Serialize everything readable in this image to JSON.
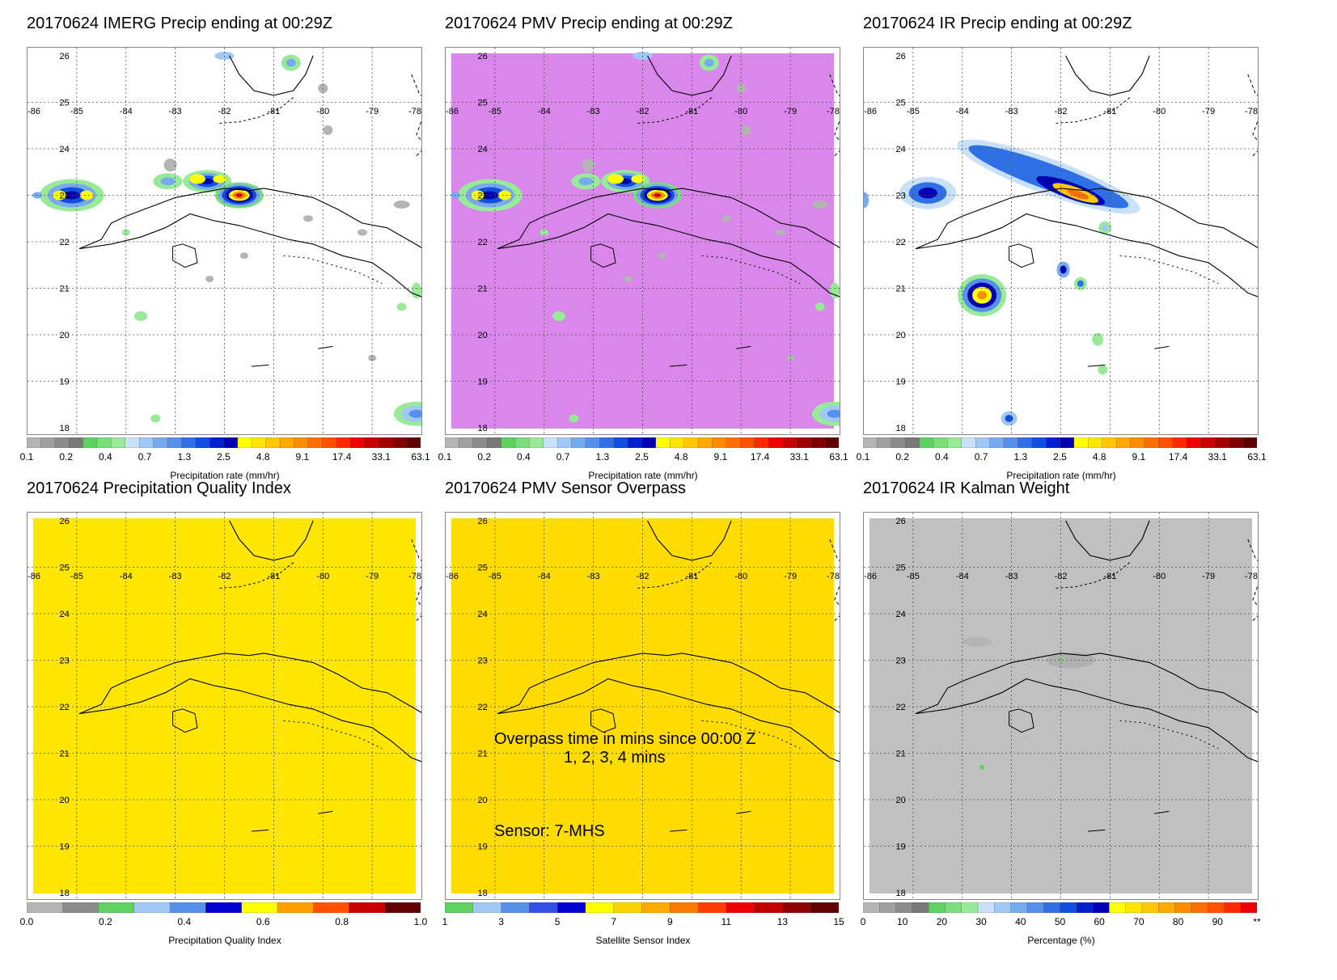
{
  "panels": [
    {
      "title": "20170624 IMERG Precip ending at 00:29Z",
      "background": "#ffffff",
      "precip_blobs": true,
      "colorbar": {
        "title": "Precipitation rate (mm/hr)",
        "ticks": [
          "0.1",
          "0.2",
          "0.4",
          "0.7",
          "1.3",
          "2.5",
          "4.8",
          "9.1",
          "17.4",
          "33.1",
          "63.1"
        ],
        "colors": [
          "#b4b4b4",
          "#a0a0a0",
          "#8c8c8c",
          "#787878",
          "#5fd15f",
          "#7adf7a",
          "#98ea98",
          "#c8e0f8",
          "#a0c8f5",
          "#78aaf0",
          "#5590eb",
          "#3070e6",
          "#1050e0",
          "#0020d0",
          "#0000b0",
          "#ffff00",
          "#ffe600",
          "#ffc800",
          "#ffaa00",
          "#ff8c00",
          "#ff6e00",
          "#ff5000",
          "#ff2800",
          "#ee0000",
          "#c80000",
          "#a00000",
          "#800000",
          "#600000"
        ]
      }
    },
    {
      "title": "20170624 PMV Precip ending at 00:29Z",
      "background": "#d987ea",
      "precip_blobs": true,
      "colorbar": {
        "title": "Precipitation rate (mm/hr)",
        "ticks": [
          "0.1",
          "0.2",
          "0.4",
          "0.7",
          "1.3",
          "2.5",
          "4.8",
          "9.1",
          "17.4",
          "33.1",
          "63.1"
        ],
        "colors": [
          "#b4b4b4",
          "#a0a0a0",
          "#8c8c8c",
          "#787878",
          "#5fd15f",
          "#7adf7a",
          "#98ea98",
          "#c8e0f8",
          "#a0c8f5",
          "#78aaf0",
          "#5590eb",
          "#3070e6",
          "#1050e0",
          "#0020d0",
          "#0000b0",
          "#ffff00",
          "#ffe600",
          "#ffc800",
          "#ffaa00",
          "#ff8c00",
          "#ff6e00",
          "#ff5000",
          "#ff2800",
          "#ee0000",
          "#c80000",
          "#a00000",
          "#800000",
          "#600000"
        ]
      }
    },
    {
      "title": "20170624 IR Precip ending at 00:29Z",
      "background": "#ffffff",
      "precip_blobs": true,
      "colorbar": {
        "title": "Precipitation rate (mm/hr)",
        "ticks": [
          "0.1",
          "0.2",
          "0.4",
          "0.7",
          "1.3",
          "2.5",
          "4.8",
          "9.1",
          "17.4",
          "33.1",
          "63.1"
        ],
        "colors": [
          "#b4b4b4",
          "#a0a0a0",
          "#8c8c8c",
          "#787878",
          "#5fd15f",
          "#7adf7a",
          "#98ea98",
          "#c8e0f8",
          "#a0c8f5",
          "#78aaf0",
          "#5590eb",
          "#3070e6",
          "#1050e0",
          "#0020d0",
          "#0000b0",
          "#ffff00",
          "#ffe600",
          "#ffc800",
          "#ffaa00",
          "#ff8c00",
          "#ff6e00",
          "#ff5000",
          "#ff2800",
          "#ee0000",
          "#c80000",
          "#a00000",
          "#800000",
          "#600000"
        ]
      }
    },
    {
      "title": "20170624 Precipitation Quality Index",
      "background": "#ffe600",
      "precip_blobs": false,
      "colorbar": {
        "title": "Precipitation Quality Index",
        "ticks": [
          "0.0",
          "0.2",
          "0.4",
          "0.6",
          "0.8",
          "1.0"
        ],
        "colors": [
          "#b4b4b4",
          "#8c8c8c",
          "#5fd15f",
          "#a0c8f5",
          "#5590eb",
          "#0000d0",
          "#ffff00",
          "#ffa000",
          "#ff5000",
          "#c80000",
          "#600000"
        ]
      }
    },
    {
      "title": "20170624 PMV Sensor Overpass",
      "background": "#ffdc00",
      "precip_blobs": false,
      "overpass_text": "Overpass time in mins since 00:00 Z",
      "overpass_sub": "1, 2, 3, 4 mins",
      "sensor_text": "Sensor:   7-MHS",
      "colorbar": {
        "title": "Satellite Sensor Index",
        "ticks": [
          "1",
          "3",
          "5",
          "7",
          "9",
          "11",
          "13",
          "15"
        ],
        "colors": [
          "#5fd15f",
          "#a0c8f5",
          "#5590eb",
          "#3050e6",
          "#0000d0",
          "#ffff00",
          "#ffd200",
          "#ffaa00",
          "#ff7800",
          "#ff3c00",
          "#ee0000",
          "#c00000",
          "#900000",
          "#600000"
        ]
      }
    },
    {
      "title": "20170624 IR Kalman Weight",
      "background": "#c0c0c0",
      "precip_blobs": false,
      "colorbar": {
        "title": "Percentage (%)",
        "ticks": [
          "0",
          "10",
          "20",
          "30",
          "40",
          "50",
          "60",
          "70",
          "80",
          "90",
          "**"
        ],
        "colors": [
          "#b4b4b4",
          "#a0a0a0",
          "#8c8c8c",
          "#787878",
          "#5fd15f",
          "#7adf7a",
          "#98ea98",
          "#c8e0f8",
          "#a0c8f5",
          "#78aaf0",
          "#5590eb",
          "#3070e6",
          "#1050e0",
          "#0020d0",
          "#0000b0",
          "#ffff00",
          "#ffe600",
          "#ffc800",
          "#ffaa00",
          "#ff8c00",
          "#ff6e00",
          "#ff5000",
          "#ff2800",
          "#ee0000"
        ]
      }
    }
  ],
  "lon_labels": [
    "-86",
    "-85",
    "-84",
    "-83",
    "-82",
    "-81",
    "-80",
    "-79",
    "-78"
  ],
  "lat_labels": [
    "26",
    "25",
    "24",
    "23",
    "22",
    "21",
    "20",
    "19",
    "18"
  ]
}
